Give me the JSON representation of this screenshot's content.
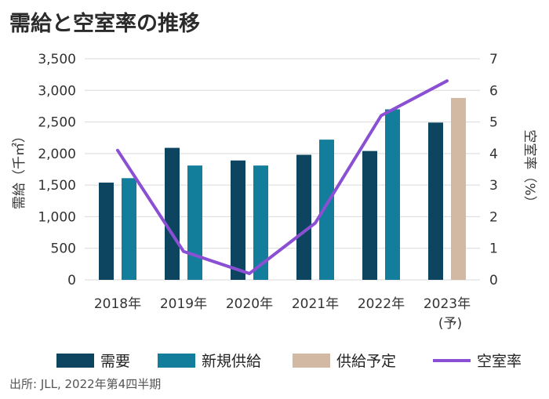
{
  "chart_data": {
    "type": "bar",
    "title": "需給と空室率の推移",
    "categories": [
      "2018年",
      "2019年",
      "2020年",
      "2021年",
      "2022年",
      "2023年"
    ],
    "category_sublabels": [
      "",
      "",
      "",
      "",
      "",
      "(予)"
    ],
    "ylabel": "需給（千㎡）",
    "y2label": "空室率（%）",
    "ylim": [
      0,
      3500
    ],
    "y2lim": [
      0,
      7
    ],
    "yticks": [
      "0",
      "500",
      "1,000",
      "1,500",
      "2,000",
      "2,500",
      "3,000",
      "3,500"
    ],
    "y2ticks": [
      "0",
      "1",
      "2",
      "3",
      "4",
      "5",
      "6",
      "7"
    ],
    "grid": true,
    "legend_position": "bottom",
    "series": [
      {
        "name": "需要",
        "kind": "bar",
        "color": "#0d4560",
        "values": [
          1540,
          2090,
          1890,
          1980,
          2040,
          2490
        ]
      },
      {
        "name": "新規供給",
        "kind": "bar",
        "color": "#137e9c",
        "values": [
          1610,
          1810,
          1810,
          2220,
          2700,
          null
        ]
      },
      {
        "name": "供給予定",
        "kind": "bar",
        "color": "#d2b9a3",
        "values": [
          null,
          null,
          null,
          null,
          null,
          2880
        ]
      },
      {
        "name": "空室率",
        "kind": "line",
        "axis": "right",
        "color": "#8a4fd3",
        "values": [
          4.1,
          0.9,
          0.2,
          1.8,
          5.2,
          6.3
        ]
      }
    ]
  },
  "source_note": "出所: JLL, 2022年第4四半期"
}
